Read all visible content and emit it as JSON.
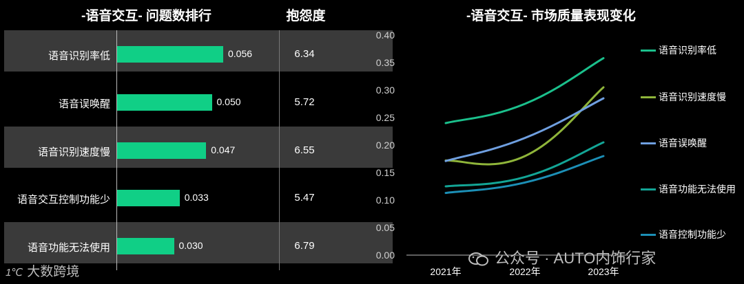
{
  "left_title": "-语音交互- 问题数排行",
  "complaint_header": "抱怨度",
  "right_title": "-语音交互- 市场质量表现变化",
  "watermark_center": "公众号 · AUTO内饰行家",
  "watermark_left": "大数跨境",
  "chart_data": [
    {
      "type": "bar",
      "orientation": "horizontal",
      "title": "-语音交互- 问题数排行",
      "categories": [
        "语音识别率低",
        "语音误唤醒",
        "语音识别速度慢",
        "语音交互控制功能少",
        "语音功能无法使用"
      ],
      "values": [
        0.056,
        0.05,
        0.047,
        0.033,
        0.03
      ],
      "value_labels": [
        "0.056",
        "0.050",
        "0.047",
        "0.033",
        "0.030"
      ],
      "complaint_header": "抱怨度",
      "complaint": [
        "6.34",
        "5.72",
        "6.55",
        "5.47",
        "6.79"
      ],
      "bar_color": "#10cf86",
      "row_band_color": "#3a3a3a"
    },
    {
      "type": "line",
      "title": "-语音交互- 市场质量表现变化",
      "x": [
        "2021年",
        "2022年",
        "2023年"
      ],
      "ylim": [
        0,
        0.4
      ],
      "yticks": [
        "0.00",
        "0.05",
        "0.10",
        "0.15",
        "0.20",
        "0.25",
        "0.30",
        "0.35",
        "0.40"
      ],
      "legend_position": "right",
      "series": [
        {
          "name": "语音识别率低",
          "values": [
            0.24,
            0.275,
            0.358
          ],
          "color": "#1bc08c"
        },
        {
          "name": "语音识别速度慢",
          "values": [
            0.172,
            0.18,
            0.305
          ],
          "color": "#8fb53a"
        },
        {
          "name": "语音误唤醒",
          "values": [
            0.171,
            0.213,
            0.285
          ],
          "color": "#6f9fe0"
        },
        {
          "name": "语音功能无法使用",
          "values": [
            0.125,
            0.142,
            0.205
          ],
          "color": "#13a596"
        },
        {
          "name": "语音控制功能少",
          "values": [
            0.113,
            0.132,
            0.18
          ],
          "color": "#1c8fb6"
        }
      ]
    }
  ]
}
